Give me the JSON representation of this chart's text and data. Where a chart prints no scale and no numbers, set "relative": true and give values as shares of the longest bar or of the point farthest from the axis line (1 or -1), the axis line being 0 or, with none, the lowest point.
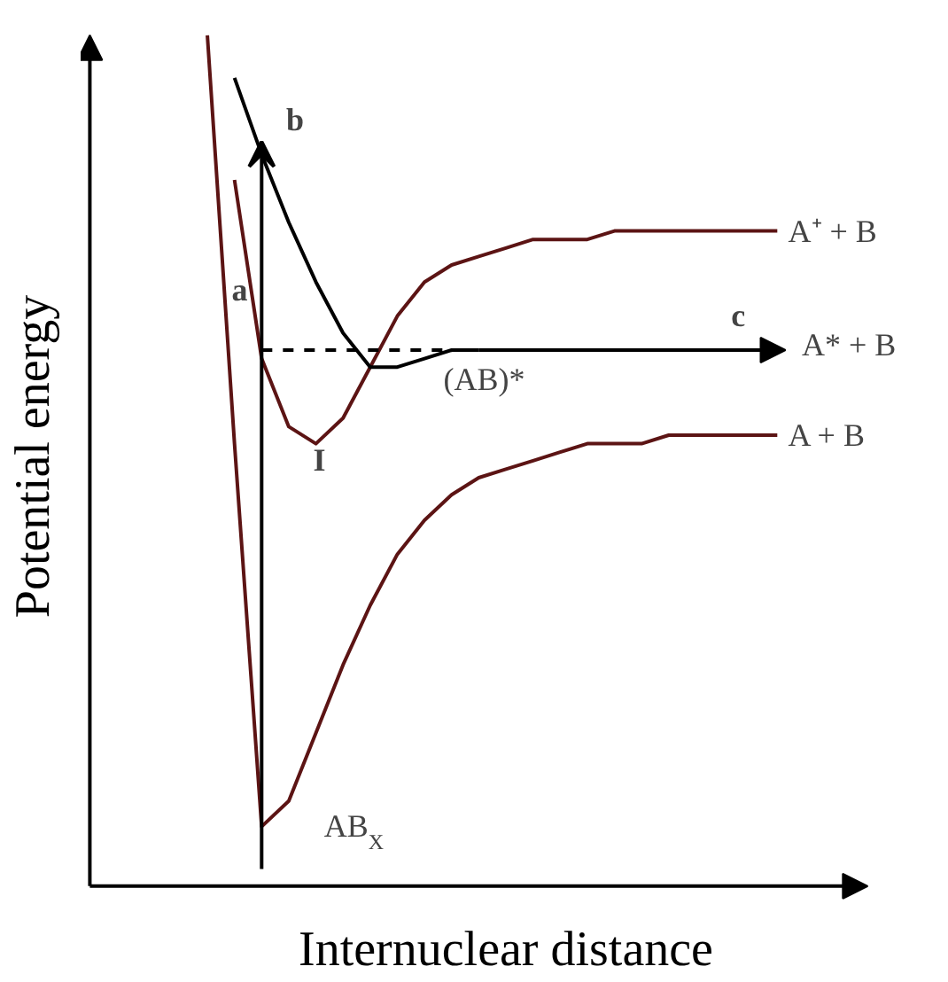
{
  "chart_data": {
    "type": "line",
    "relative": true,
    "xlabel": "Internuclear distance",
    "ylabel": "Potential energy",
    "categories": [
      null,
      null,
      null,
      null,
      null,
      null,
      null,
      null,
      null,
      null,
      null,
      null,
      null,
      null,
      null,
      null,
      null,
      null,
      null,
      null,
      null,
      null
    ],
    "series": [
      {
        "name": "A + B",
        "color": "#5c1414",
        "values": [
          1.0,
          0.52,
          0.07,
          0.1,
          0.18,
          0.26,
          0.33,
          0.39,
          0.43,
          0.46,
          0.48,
          0.49,
          0.5,
          0.51,
          0.52,
          0.52,
          0.52,
          0.53,
          0.53,
          0.53,
          0.53,
          0.53
        ]
      },
      {
        "name": "A⁺ + B",
        "color": "#5c1414",
        "values": [
          null,
          0.83,
          0.62,
          0.54,
          0.52,
          0.55,
          0.61,
          0.67,
          0.71,
          0.73,
          0.74,
          0.75,
          0.76,
          0.76,
          0.76,
          0.77,
          0.77,
          0.77,
          0.77,
          0.77,
          0.77,
          0.77
        ]
      },
      {
        "color": "#000000",
        "values": [
          null,
          0.95,
          0.86,
          0.78,
          0.71,
          0.65,
          0.61,
          0.61,
          0.62,
          0.63,
          0.63,
          null,
          null,
          null,
          null,
          null,
          null,
          null,
          null,
          null,
          null,
          null
        ]
      },
      {
        "color": "#000000",
        "line_style": "dashed",
        "values": [
          null,
          null,
          0.63,
          0.63,
          0.63,
          0.63,
          0.63,
          0.63,
          0.63,
          0.63,
          0.63,
          null,
          null,
          null,
          null,
          null,
          null,
          null,
          null,
          null,
          null,
          null
        ]
      }
    ],
    "annotations": [
      "a",
      "b",
      "c",
      "I",
      "(AB)*",
      "AB$_{X}$",
      "A* + B"
    ]
  }
}
